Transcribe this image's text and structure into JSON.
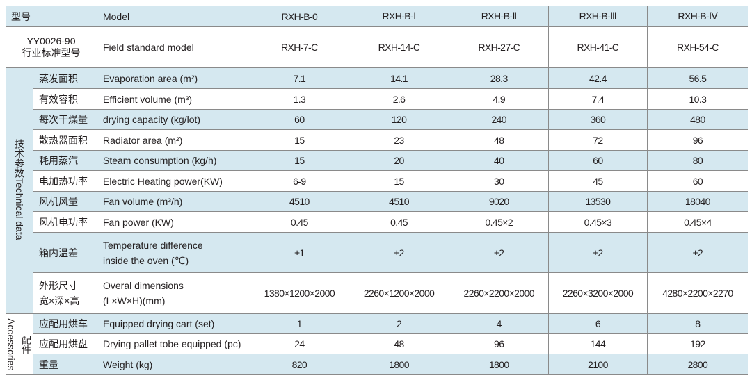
{
  "header": {
    "cn": "型号",
    "en": "Model",
    "models": [
      "RXH-B-0",
      "RXH-B-Ⅰ",
      "RXH-B-Ⅱ",
      "RXH-B-Ⅲ",
      "RXH-B-Ⅳ"
    ]
  },
  "standard": {
    "code": "YY0026-90",
    "cn": "行业标准型号",
    "en": "Field standard model",
    "values": [
      "RXH-7-C",
      "RXH-14-C",
      "RXH-27-C",
      "RXH-41-C",
      "RXH-54-C"
    ]
  },
  "groups": {
    "technical": "技术参数Technical data",
    "accessories_cn": "配件",
    "accessories_en": "Accessories"
  },
  "rows": [
    {
      "cn": "蒸发面积",
      "en": "Evaporation area (m²)",
      "values": [
        "7.1",
        "14.1",
        "28.3",
        "42.4",
        "56.5"
      ]
    },
    {
      "cn": "有效容积",
      "en": "Efficient volume (m³)",
      "values": [
        "1.3",
        "2.6",
        "4.9",
        "7.4",
        "10.3"
      ]
    },
    {
      "cn": "每次干燥量",
      "en": "drying capacity (kg/lot)",
      "values": [
        "60",
        "120",
        "240",
        "360",
        "480"
      ]
    },
    {
      "cn": "散热器面积",
      "en": "Radiator area (m²)",
      "values": [
        "15",
        "23",
        "48",
        "72",
        "96"
      ]
    },
    {
      "cn": "耗用蒸汽",
      "en": "Steam consumption (kg/h)",
      "values": [
        "15",
        "20",
        "40",
        "60",
        "80"
      ]
    },
    {
      "cn": "电加热功率",
      "en": "Electric Heating power(KW)",
      "values": [
        "6-9",
        "15",
        "30",
        "45",
        "60"
      ]
    },
    {
      "cn": "风机风量",
      "en": "Fan volume (m³/h)",
      "values": [
        "4510",
        "4510",
        "9020",
        "13530",
        "18040"
      ]
    },
    {
      "cn": "风机电功率",
      "en": "Fan power (KW)",
      "values": [
        "0.45",
        "0.45",
        "0.45×2",
        "0.45×3",
        "0.45×4"
      ]
    },
    {
      "cn": "箱内温差",
      "en1": "Temperature difference",
      "en2": "inside the oven (℃)",
      "values": [
        "±1",
        "±2",
        "±2",
        "±2",
        "±2"
      ]
    },
    {
      "cn1": "外形尺寸",
      "cn2": "宽×深×高",
      "en1": "Overal dimensions",
      "en2": "(L×W×H)(mm)",
      "values": [
        "1380×1200×2000",
        "2260×1200×2000",
        "2260×2200×2000",
        "2260×3200×2000",
        "4280×2200×2270"
      ]
    },
    {
      "cn": "应配用烘车",
      "en": "Equipped drying cart (set)",
      "values": [
        "1",
        "2",
        "4",
        "6",
        "8"
      ]
    },
    {
      "cn": "应配用烘盘",
      "en": "Drying pallet tobe equipped (pc)",
      "values": [
        "24",
        "48",
        "96",
        "144",
        "192"
      ]
    },
    {
      "cn": "重量",
      "en": "Weight (kg)",
      "values": [
        "820",
        "1800",
        "1800",
        "2100",
        "2800"
      ]
    }
  ],
  "colors": {
    "band": "#d5e8f0",
    "border": "#8a8a8a"
  }
}
